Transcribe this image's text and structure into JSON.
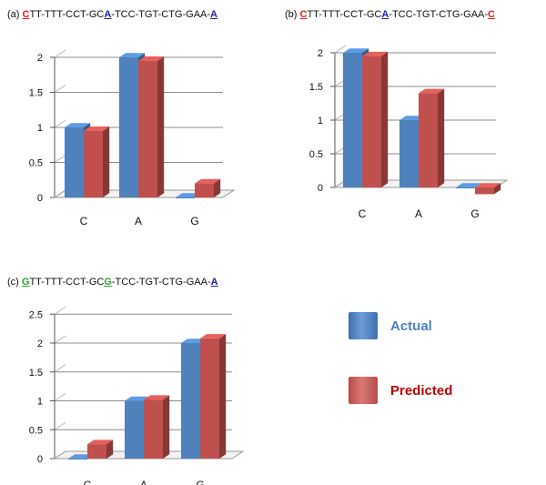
{
  "colors": {
    "actual": "#4f81bd",
    "predicted": "#c0504d",
    "red_base": "#e0201b",
    "blue_base": "#1f1fa8",
    "green_base": "#2e9e2e",
    "grid": "#8c8c8c"
  },
  "legend": {
    "actual_label": "Actual",
    "predicted_label": "Predicted",
    "actual_color": "#4f81bd",
    "predicted_color": "#c0504d"
  },
  "chart_data": [
    {
      "type": "bar",
      "panel": "(a)",
      "title_segments": [
        {
          "text": "(a) ",
          "color": "#111111",
          "highlight": false
        },
        {
          "text": "C",
          "color": "#e0201b",
          "highlight": true
        },
        {
          "text": "TT-TTT-CCT-GC",
          "color": "#111111",
          "highlight": false
        },
        {
          "text": "A",
          "color": "#1f1fa8",
          "highlight": true
        },
        {
          "text": "-TCC-TGT-CTG-GAA-",
          "color": "#111111",
          "highlight": false
        },
        {
          "text": "A",
          "color": "#1f1fa8",
          "highlight": true
        }
      ],
      "categories": [
        "C",
        "A",
        "G"
      ],
      "series": [
        {
          "name": "Actual",
          "values": [
            1,
            2,
            0
          ]
        },
        {
          "name": "Predicted",
          "values": [
            0.95,
            1.95,
            0.2
          ]
        }
      ],
      "yticks": [
        "0",
        "0.5",
        "1",
        "1.5",
        "2"
      ],
      "ylim": [
        0,
        2
      ],
      "grid": true
    },
    {
      "type": "bar",
      "panel": "(b)",
      "title_segments": [
        {
          "text": "(b) ",
          "color": "#111111",
          "highlight": false
        },
        {
          "text": "C",
          "color": "#e0201b",
          "highlight": true
        },
        {
          "text": "TT-TTT-CCT-GC",
          "color": "#111111",
          "highlight": false
        },
        {
          "text": "A",
          "color": "#1f1fa8",
          "highlight": true
        },
        {
          "text": "-TCC-TGT-CTG-GAA-",
          "color": "#111111",
          "highlight": false
        },
        {
          "text": "C",
          "color": "#e0201b",
          "highlight": true
        }
      ],
      "categories": [
        "C",
        "A",
        "G"
      ],
      "series": [
        {
          "name": "Actual",
          "values": [
            2,
            1,
            0
          ]
        },
        {
          "name": "Predicted",
          "values": [
            1.95,
            1.4,
            -0.1
          ]
        }
      ],
      "yticks": [
        "0",
        "0.5",
        "1",
        "1.5",
        "2"
      ],
      "ylim": [
        0,
        2
      ],
      "grid": true
    },
    {
      "type": "bar",
      "panel": "(c)",
      "title_segments": [
        {
          "text": "(c) ",
          "color": "#111111",
          "highlight": false
        },
        {
          "text": "G",
          "color": "#2e9e2e",
          "highlight": true
        },
        {
          "text": "TT-TTT-CCT-GC",
          "color": "#111111",
          "highlight": false
        },
        {
          "text": "G",
          "color": "#2e9e2e",
          "highlight": true
        },
        {
          "text": "-TCC-TGT-CTG-GAA-",
          "color": "#111111",
          "highlight": false
        },
        {
          "text": "A",
          "color": "#1f1fa8",
          "highlight": true
        }
      ],
      "categories": [
        "C",
        "A",
        "G"
      ],
      "series": [
        {
          "name": "Actual",
          "values": [
            0,
            1,
            2
          ]
        },
        {
          "name": "Predicted",
          "values": [
            0.25,
            1.02,
            2.08
          ]
        }
      ],
      "yticks": [
        "0",
        "0.5",
        "1",
        "1.5",
        "2",
        "2.5"
      ],
      "ylim": [
        0,
        2.5
      ],
      "grid": true
    }
  ]
}
